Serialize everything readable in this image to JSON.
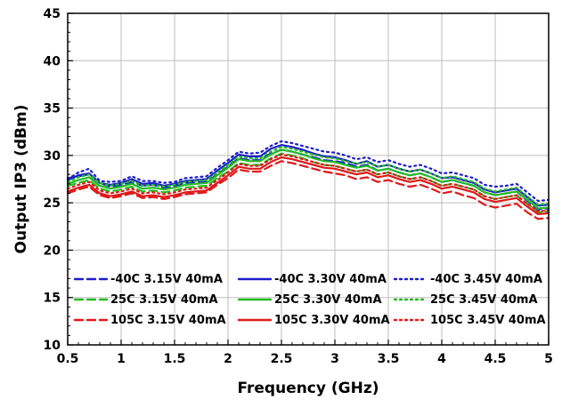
{
  "chart_data": {
    "type": "line",
    "xlabel": "Frequency (GHz)",
    "ylabel": "Output IP3 (dBm)",
    "xlim": [
      0.5,
      5
    ],
    "ylim": [
      10,
      45
    ],
    "x_ticks": [
      0.5,
      1,
      1.5,
      2,
      2.5,
      3,
      3.5,
      4,
      4.5,
      5
    ],
    "y_ticks": [
      10,
      15,
      20,
      25,
      30,
      35,
      40,
      45
    ],
    "x_tick_labels": [
      "0.5",
      "1",
      "1.5",
      "2",
      "2.5",
      "3",
      "3.5",
      "4",
      "4.5",
      "5"
    ],
    "y_tick_labels": [
      "10",
      "15",
      "20",
      "25",
      "30",
      "35",
      "40",
      "45"
    ],
    "grid": true,
    "legend_position": "lower-inside",
    "colors": {
      "-40C": "#1c1ccc",
      "25C": "#22bb22",
      "105C": "#e01818"
    },
    "x": [
      0.5,
      0.6,
      0.7,
      0.8,
      0.9,
      1.0,
      1.1,
      1.2,
      1.3,
      1.4,
      1.5,
      1.6,
      1.7,
      1.8,
      1.9,
      2.0,
      2.1,
      2.2,
      2.3,
      2.4,
      2.5,
      2.6,
      2.7,
      2.8,
      2.9,
      3.0,
      3.1,
      3.2,
      3.3,
      3.4,
      3.5,
      3.6,
      3.7,
      3.8,
      3.9,
      4.0,
      4.1,
      4.2,
      4.3,
      4.4,
      4.5,
      4.6,
      4.7,
      4.8,
      4.9,
      5.0
    ],
    "series": [
      {
        "name": "-40C 3.15V 40mA",
        "color": "#1c1ccc",
        "dash": "dashed",
        "values": [
          27.6,
          27.8,
          28.0,
          27.1,
          26.7,
          26.9,
          27.2,
          26.8,
          26.9,
          26.6,
          26.8,
          27.1,
          27.2,
          27.2,
          28.0,
          28.8,
          29.7,
          29.5,
          29.5,
          30.2,
          30.6,
          30.4,
          30.1,
          29.8,
          29.5,
          29.4,
          29.2,
          28.8,
          29.0,
          28.4,
          28.6,
          28.2,
          27.9,
          28.1,
          27.7,
          27.2,
          27.4,
          27.1,
          26.8,
          26.1,
          25.8,
          26.0,
          26.2,
          25.2,
          24.3,
          24.4
        ]
      },
      {
        "name": "-40C 3.30V 40mA",
        "color": "#1c1ccc",
        "dash": "solid",
        "values": [
          27.4,
          27.9,
          28.1,
          27.1,
          26.9,
          27.1,
          27.5,
          27.0,
          27.1,
          26.8,
          27.0,
          27.3,
          27.4,
          27.5,
          28.4,
          29.2,
          30.1,
          29.9,
          29.9,
          30.7,
          31.1,
          30.9,
          30.6,
          30.2,
          29.9,
          29.8,
          29.5,
          29.1,
          29.4,
          28.8,
          29.0,
          28.6,
          28.3,
          28.5,
          28.1,
          27.6,
          27.7,
          27.4,
          27.1,
          26.4,
          26.1,
          26.3,
          26.5,
          25.6,
          24.7,
          24.8
        ]
      },
      {
        "name": "-40C 3.45V 40mA",
        "color": "#1c1ccc",
        "dash": "dotted",
        "values": [
          27.5,
          28.2,
          28.6,
          27.3,
          27.2,
          27.3,
          27.8,
          27.3,
          27.3,
          27.1,
          27.2,
          27.6,
          27.7,
          27.8,
          28.7,
          29.5,
          30.4,
          30.2,
          30.3,
          31.0,
          31.5,
          31.3,
          31.0,
          30.7,
          30.4,
          30.3,
          30.0,
          29.6,
          29.8,
          29.3,
          29.5,
          29.1,
          28.8,
          29.0,
          28.6,
          28.1,
          28.2,
          27.9,
          27.6,
          26.9,
          26.7,
          26.8,
          27.0,
          26.1,
          25.2,
          25.3
        ]
      },
      {
        "name": "25C 3.15V 40mA",
        "color": "#22bb22",
        "dash": "dashed",
        "values": [
          26.8,
          27.1,
          27.4,
          26.5,
          26.2,
          26.4,
          26.7,
          26.2,
          26.3,
          26.1,
          26.3,
          26.6,
          26.7,
          26.8,
          27.6,
          28.3,
          29.2,
          29.0,
          29.0,
          29.7,
          30.2,
          30.0,
          29.7,
          29.3,
          29.0,
          28.9,
          28.6,
          28.3,
          28.5,
          28.0,
          28.2,
          27.8,
          27.5,
          27.7,
          27.3,
          26.8,
          27.0,
          26.7,
          26.4,
          25.7,
          25.4,
          25.6,
          25.8,
          24.9,
          24.0,
          24.1
        ]
      },
      {
        "name": "25C 3.30V 40mA",
        "color": "#22bb22",
        "dash": "solid",
        "values": [
          27.0,
          27.4,
          27.7,
          26.8,
          26.5,
          26.7,
          27.0,
          26.5,
          26.6,
          26.4,
          26.6,
          26.9,
          27.0,
          27.1,
          27.9,
          28.7,
          29.6,
          29.4,
          29.4,
          30.1,
          30.6,
          30.4,
          30.1,
          29.7,
          29.4,
          29.3,
          29.0,
          28.7,
          28.9,
          28.4,
          28.6,
          28.2,
          27.9,
          28.1,
          27.7,
          27.2,
          27.4,
          27.1,
          26.8,
          26.1,
          25.8,
          26.0,
          26.2,
          25.3,
          24.4,
          24.5
        ]
      },
      {
        "name": "25C 3.45V 40mA",
        "color": "#22bb22",
        "dash": "dotted",
        "values": [
          27.2,
          27.7,
          28.0,
          27.1,
          26.8,
          27.0,
          27.3,
          26.8,
          26.9,
          26.7,
          26.9,
          27.2,
          27.3,
          27.4,
          28.2,
          29.0,
          29.9,
          29.7,
          29.7,
          30.4,
          30.9,
          30.7,
          30.4,
          30.1,
          29.8,
          29.7,
          29.4,
          29.1,
          29.3,
          28.8,
          29.0,
          28.6,
          28.3,
          28.5,
          28.1,
          27.6,
          27.8,
          27.5,
          27.2,
          26.5,
          26.2,
          26.4,
          26.6,
          25.7,
          24.8,
          24.9
        ]
      },
      {
        "name": "105C 3.15V 40mA",
        "color": "#e01818",
        "dash": "dashed",
        "values": [
          26.0,
          26.4,
          26.7,
          25.8,
          25.5,
          25.7,
          26.0,
          25.5,
          25.6,
          25.4,
          25.6,
          25.9,
          26.0,
          26.1,
          26.9,
          27.6,
          28.5,
          28.3,
          28.3,
          28.9,
          29.4,
          29.2,
          28.9,
          28.6,
          28.3,
          28.1,
          27.9,
          27.5,
          27.7,
          27.2,
          27.4,
          27.0,
          26.7,
          26.9,
          26.5,
          26.0,
          26.2,
          25.8,
          25.5,
          24.8,
          24.5,
          24.7,
          24.9,
          24.0,
          23.3,
          23.4
        ]
      },
      {
        "name": "105C 3.30V 40mA",
        "color": "#e01818",
        "dash": "solid",
        "values": [
          26.2,
          26.6,
          26.9,
          26.0,
          25.7,
          25.9,
          26.2,
          25.7,
          25.8,
          25.6,
          25.8,
          26.1,
          26.2,
          26.3,
          27.1,
          27.9,
          28.8,
          28.6,
          28.6,
          29.3,
          29.8,
          29.6,
          29.3,
          29.0,
          28.7,
          28.6,
          28.3,
          28.0,
          28.2,
          27.7,
          27.9,
          27.5,
          27.2,
          27.4,
          27.0,
          26.5,
          26.7,
          26.4,
          26.1,
          25.4,
          25.1,
          25.3,
          25.5,
          24.6,
          23.8,
          23.9
        ]
      },
      {
        "name": "105C 3.45V 40mA",
        "color": "#e01818",
        "dash": "dotted",
        "values": [
          26.5,
          26.9,
          27.2,
          26.3,
          26.0,
          26.2,
          26.5,
          26.0,
          26.1,
          25.9,
          26.1,
          26.4,
          26.5,
          26.6,
          27.4,
          28.2,
          29.1,
          28.9,
          28.9,
          29.6,
          30.1,
          29.9,
          29.6,
          29.3,
          29.0,
          28.9,
          28.6,
          28.3,
          28.5,
          28.0,
          28.2,
          27.8,
          27.5,
          27.7,
          27.3,
          26.8,
          27.0,
          26.7,
          26.4,
          25.7,
          25.4,
          25.6,
          25.8,
          24.9,
          24.1,
          24.2
        ]
      }
    ]
  }
}
